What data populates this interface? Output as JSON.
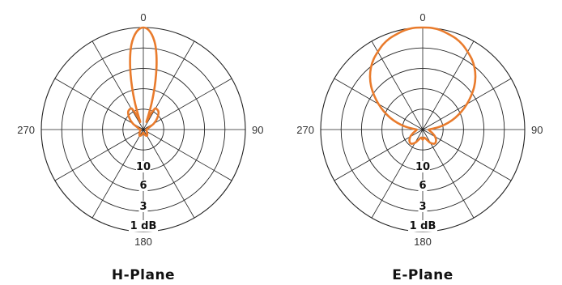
{
  "colors": {
    "pattern": "#e97b2c",
    "grid": "#222222",
    "background": "#ffffff"
  },
  "chart_data": [
    {
      "type": "polar",
      "title": "H-Plane",
      "angle_ticks": [
        "0",
        "90",
        "180",
        "270"
      ],
      "radial_ticks": [
        "10",
        "6",
        "3",
        "1 dB"
      ],
      "radial_rings": 5,
      "spokes_every_deg": 30,
      "series": [
        {
          "angles_deg": [
            0,
            2,
            4,
            6,
            8,
            10,
            12,
            14,
            16,
            18,
            20,
            22,
            24,
            26,
            28,
            30,
            40,
            50,
            60,
            70,
            80,
            90,
            100,
            120,
            140,
            150,
            160,
            170,
            180,
            190,
            200,
            210,
            220,
            240,
            260,
            270,
            280,
            290,
            300,
            310,
            320,
            330,
            332,
            334,
            336,
            338,
            340,
            342,
            344,
            346,
            348,
            350,
            352,
            354,
            356,
            358
          ],
          "radius": [
            1.0,
            0.99,
            0.96,
            0.91,
            0.84,
            0.74,
            0.62,
            0.49,
            0.36,
            0.24,
            0.13,
            0.08,
            0.12,
            0.18,
            0.22,
            0.24,
            0.23,
            0.18,
            0.12,
            0.06,
            0.04,
            0.03,
            0.03,
            0.04,
            0.06,
            0.07,
            0.06,
            0.04,
            0.03,
            0.04,
            0.06,
            0.07,
            0.06,
            0.04,
            0.03,
            0.03,
            0.04,
            0.06,
            0.12,
            0.18,
            0.23,
            0.24,
            0.22,
            0.18,
            0.12,
            0.08,
            0.13,
            0.24,
            0.36,
            0.49,
            0.62,
            0.74,
            0.84,
            0.91,
            0.96,
            0.99
          ]
        }
      ]
    },
    {
      "type": "polar",
      "title": "E-Plane",
      "angle_ticks": [
        "0",
        "90",
        "180",
        "270"
      ],
      "radial_ticks": [
        "10",
        "6",
        "3",
        "1 dB"
      ],
      "radial_rings": 5,
      "spokes_every_deg": 30,
      "series": [
        {
          "angles_deg": [
            0,
            5,
            10,
            15,
            20,
            25,
            30,
            35,
            40,
            45,
            50,
            55,
            60,
            65,
            70,
            75,
            80,
            85,
            90,
            100,
            110,
            120,
            130,
            140,
            150,
            160,
            170,
            180,
            190,
            200,
            210,
            220,
            230,
            240,
            250,
            260,
            270,
            275,
            280,
            285,
            290,
            295,
            300,
            305,
            310,
            315,
            320,
            325,
            330,
            335,
            340,
            345,
            350,
            355
          ],
          "radius": [
            1.0,
            1.0,
            0.99,
            0.97,
            0.95,
            0.92,
            0.88,
            0.84,
            0.79,
            0.73,
            0.66,
            0.58,
            0.5,
            0.42,
            0.34,
            0.26,
            0.18,
            0.1,
            0.06,
            0.07,
            0.1,
            0.14,
            0.17,
            0.18,
            0.15,
            0.1,
            0.08,
            0.1,
            0.08,
            0.1,
            0.15,
            0.18,
            0.17,
            0.14,
            0.1,
            0.07,
            0.06,
            0.1,
            0.18,
            0.26,
            0.34,
            0.42,
            0.5,
            0.58,
            0.66,
            0.73,
            0.79,
            0.84,
            0.88,
            0.92,
            0.95,
            0.97,
            0.99,
            1.0
          ]
        }
      ]
    }
  ]
}
